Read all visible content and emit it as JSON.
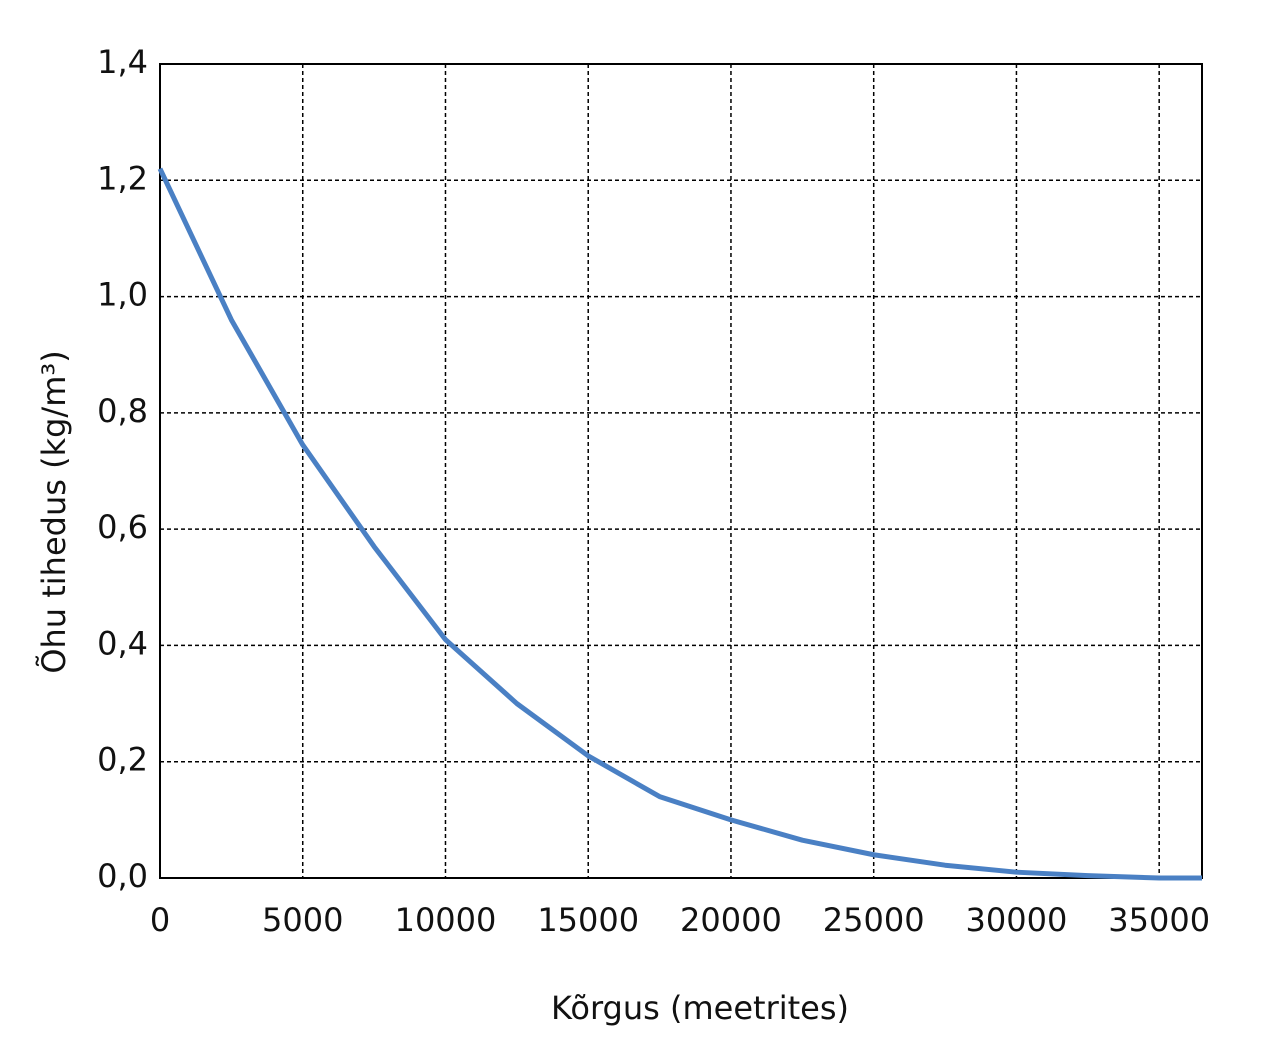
{
  "chart_data": {
    "type": "line",
    "xlabel": "Kõrgus (meetrites)",
    "ylabel": "Õhu tihedus (kg/m³)",
    "x": [
      0,
      2500,
      5000,
      7500,
      10000,
      12500,
      15000,
      17500,
      20000,
      22500,
      25000,
      27500,
      30000,
      32500,
      35000,
      36500
    ],
    "series": [
      {
        "color": "#4a80c4",
        "values": [
          1.22,
          0.96,
          0.745,
          0.57,
          0.41,
          0.3,
          0.21,
          0.14,
          0.1,
          0.065,
          0.04,
          0.022,
          0.01,
          0.004,
          0.0,
          0.0
        ]
      }
    ],
    "xlim": [
      0,
      36500
    ],
    "xticks": [
      0,
      5000,
      10000,
      15000,
      20000,
      25000,
      30000,
      35000
    ],
    "ylim": [
      0,
      1.4
    ],
    "yticks": [
      {
        "value": 0,
        "label": "0,0"
      },
      {
        "value": 0.2,
        "label": "0,2"
      },
      {
        "value": 0.4,
        "label": "0,4"
      },
      {
        "value": 0.6,
        "label": "0,6"
      },
      {
        "value": 0.8,
        "label": "0,8"
      },
      {
        "value": 1.0,
        "label": "1,0"
      },
      {
        "value": 1.2,
        "label": "1,2"
      },
      {
        "value": 1.4,
        "label": "1,4"
      }
    ],
    "grid": true
  }
}
